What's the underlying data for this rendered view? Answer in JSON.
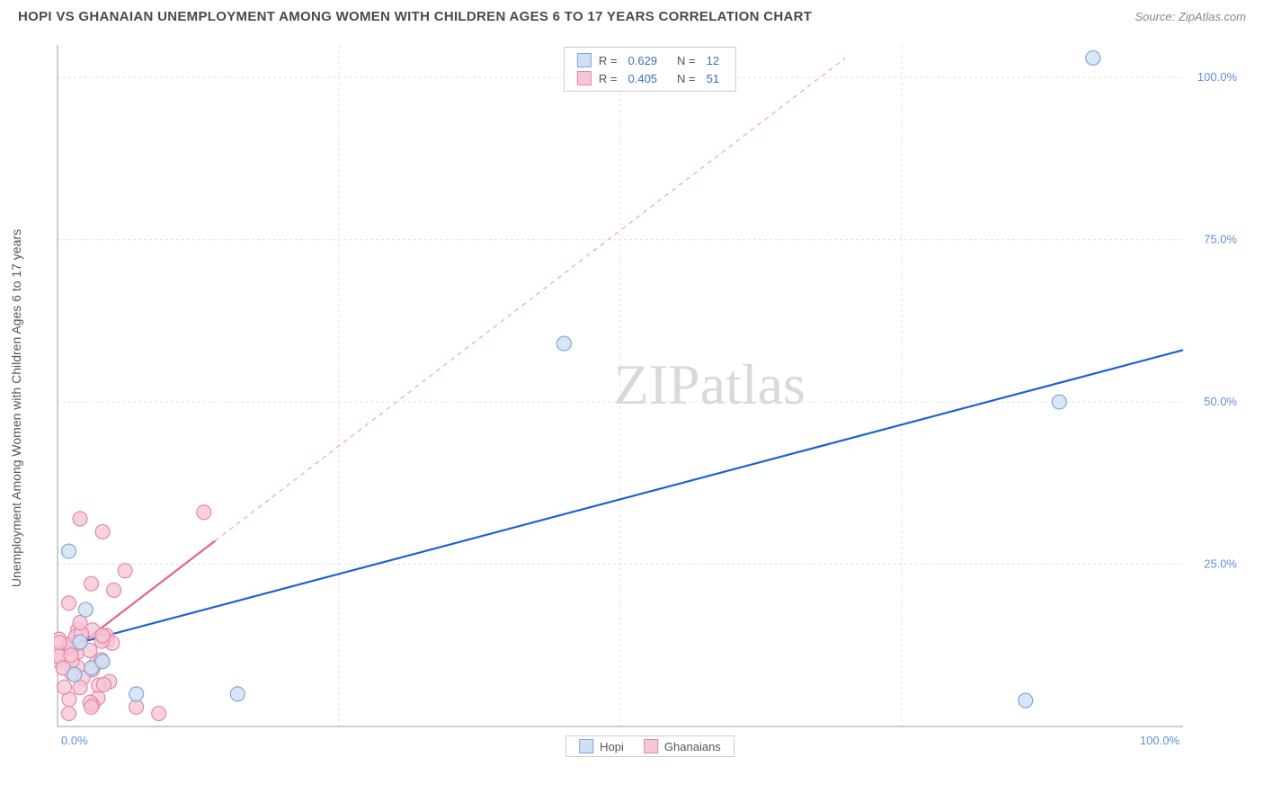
{
  "title": "HOPI VS GHANAIAN UNEMPLOYMENT AMONG WOMEN WITH CHILDREN AGES 6 TO 17 YEARS CORRELATION CHART",
  "source": "Source: ZipAtlas.com",
  "y_axis_label": "Unemployment Among Women with Children Ages 6 to 17 years",
  "watermark_a": "ZIP",
  "watermark_b": "atlas",
  "chart": {
    "type": "scatter",
    "xlim": [
      0,
      100
    ],
    "ylim": [
      0,
      105
    ],
    "x_ticks": [
      0,
      100
    ],
    "x_tick_labels": [
      "0.0%",
      "100.0%"
    ],
    "y_ticks": [
      25,
      50,
      75,
      100
    ],
    "y_tick_labels": [
      "25.0%",
      "50.0%",
      "75.0%",
      "100.0%"
    ],
    "grid_color": "#e0e0e0",
    "axis_color": "#bdbdbd",
    "background_color": "#ffffff",
    "tick_label_color": "#5b8fd6",
    "marker_radius": 8,
    "marker_stroke_width": 1.2,
    "pink_extra_count": 35
  },
  "series": [
    {
      "name": "Hopi",
      "fill": "#cfe0f4",
      "stroke": "#7fa8d9",
      "line_color": "#1d62d1",
      "line_width": 2.2,
      "line_dash": "none",
      "trend": {
        "x1": 0,
        "y1": 12,
        "x2": 100,
        "y2": 58
      },
      "points": [
        {
          "x": 7,
          "y": 5
        },
        {
          "x": 16,
          "y": 5
        },
        {
          "x": 1,
          "y": 27
        },
        {
          "x": 2,
          "y": 13
        },
        {
          "x": 3,
          "y": 9
        },
        {
          "x": 4,
          "y": 10
        },
        {
          "x": 45,
          "y": 59
        },
        {
          "x": 89,
          "y": 50
        },
        {
          "x": 86,
          "y": 4
        },
        {
          "x": 92,
          "y": 103
        },
        {
          "x": 2.5,
          "y": 18
        },
        {
          "x": 1.5,
          "y": 8
        }
      ],
      "stats": {
        "r_label": "R =",
        "r": "0.629",
        "n_label": "N =",
        "n": "12"
      }
    },
    {
      "name": "Ghanaians",
      "fill": "#f6c6d6",
      "stroke": "#e589a7",
      "line_color": "#ea5f8f",
      "line_width": 2.2,
      "line_dash": "5,5",
      "trend_solid_until": 14,
      "trend": {
        "x1": 0,
        "y1": 10,
        "x2": 70,
        "y2": 103
      },
      "points": [
        {
          "x": 2,
          "y": 32
        },
        {
          "x": 4,
          "y": 30
        },
        {
          "x": 6,
          "y": 24
        },
        {
          "x": 3,
          "y": 22
        },
        {
          "x": 5,
          "y": 21
        },
        {
          "x": 13,
          "y": 33
        },
        {
          "x": 1,
          "y": 19
        },
        {
          "x": 2,
          "y": 16
        },
        {
          "x": 4,
          "y": 14
        },
        {
          "x": 7,
          "y": 3
        },
        {
          "x": 9,
          "y": 2
        },
        {
          "x": 3,
          "y": 3
        },
        {
          "x": 1,
          "y": 2
        },
        {
          "x": 2,
          "y": 6
        },
        {
          "x": 0.5,
          "y": 9
        },
        {
          "x": 1.2,
          "y": 11
        }
      ],
      "stats": {
        "r_label": "R =",
        "r": "0.405",
        "n_label": "N =",
        "n": "51"
      }
    }
  ]
}
